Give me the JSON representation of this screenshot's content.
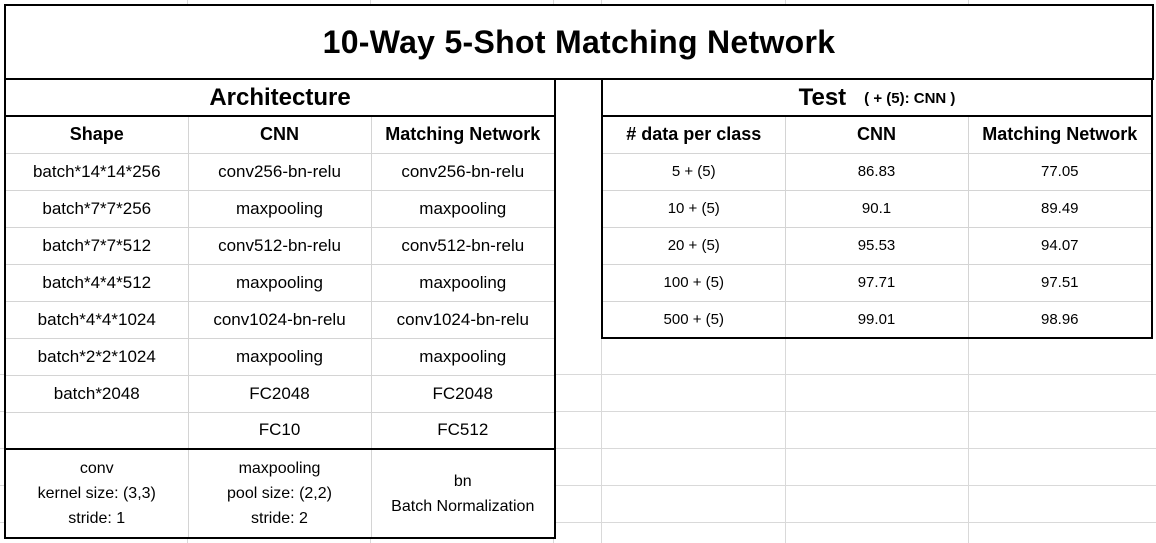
{
  "title": "10-Way 5-Shot Matching Network",
  "architecture": {
    "heading": "Architecture",
    "columns": [
      "Shape",
      "CNN",
      "Matching Network"
    ],
    "rows": [
      [
        "batch*14*14*256",
        "conv256-bn-relu",
        "conv256-bn-relu"
      ],
      [
        "batch*7*7*256",
        "maxpooling",
        "maxpooling"
      ],
      [
        "batch*7*7*512",
        "conv512-bn-relu",
        "conv512-bn-relu"
      ],
      [
        "batch*4*4*512",
        "maxpooling",
        "maxpooling"
      ],
      [
        "batch*4*4*1024",
        "conv1024-bn-relu",
        "conv1024-bn-relu"
      ],
      [
        "batch*2*2*1024",
        "maxpooling",
        "maxpooling"
      ],
      [
        "batch*2048",
        "FC2048",
        "FC2048"
      ],
      [
        "",
        "FC10",
        "FC512"
      ]
    ],
    "notes": {
      "conv": [
        "conv",
        "kernel size: (3,3)",
        "stride: 1"
      ],
      "maxpooling": [
        "maxpooling",
        "pool size: (2,2)",
        "stride: 2"
      ],
      "bn": [
        "bn",
        "Batch Normalization"
      ]
    }
  },
  "test": {
    "heading": "Test",
    "subheading": "( + (5): CNN )",
    "columns": [
      "# data per class",
      "CNN",
      "Matching Network"
    ],
    "rows": [
      [
        "5 + (5)",
        "86.83",
        "77.05"
      ],
      [
        "10 + (5)",
        "90.1",
        "89.49"
      ],
      [
        "20 + (5)",
        "95.53",
        "94.07"
      ],
      [
        "100 + (5)",
        "97.71",
        "97.51"
      ],
      [
        "500 + (5)",
        "99.01",
        "98.96"
      ]
    ]
  }
}
